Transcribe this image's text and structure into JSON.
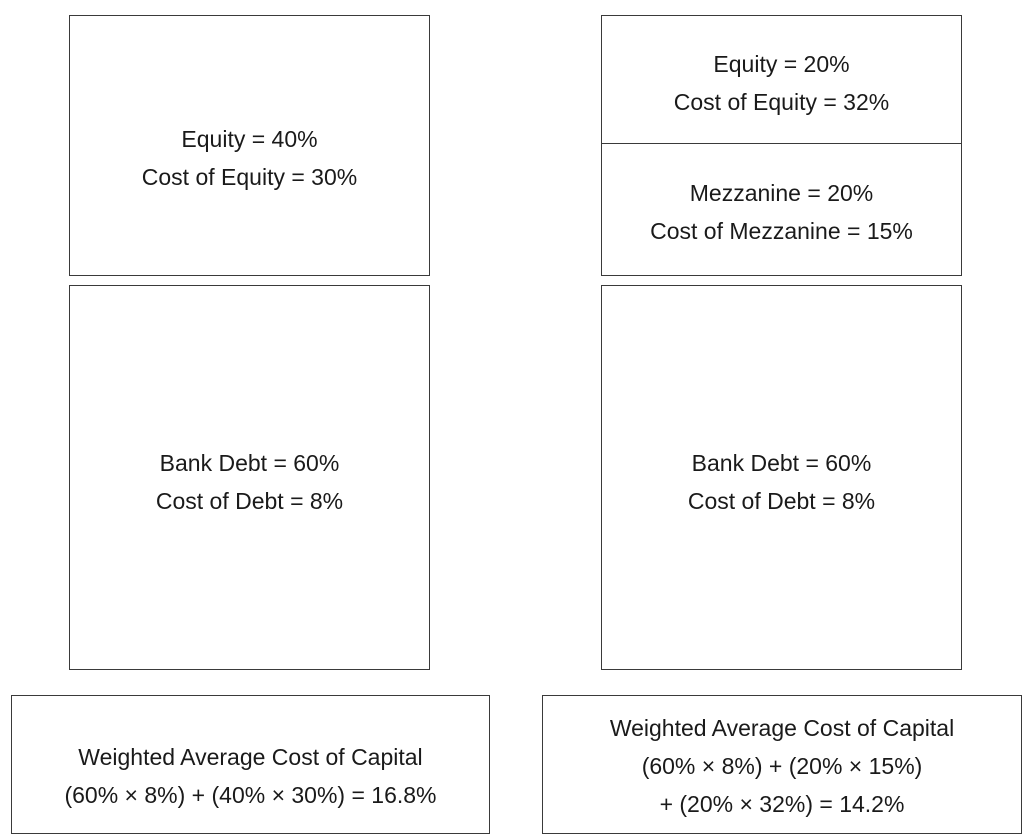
{
  "left": {
    "equity": [
      "Equity = 40%",
      "Cost of Equity = 30%"
    ],
    "debt": [
      "Bank Debt = 60%",
      "Cost of Debt = 8%"
    ],
    "wacc": [
      "Weighted Average Cost of Capital",
      "(60% × 8%) + (40% × 30%) = 16.8%"
    ]
  },
  "right": {
    "equity": [
      "Equity = 20%",
      "Cost of Equity = 32%"
    ],
    "mezzanine": [
      "Mezzanine = 20%",
      "Cost of Mezzanine = 15%"
    ],
    "debt": [
      "Bank Debt = 60%",
      "Cost of Debt = 8%"
    ],
    "wacc": [
      "Weighted Average Cost of Capital",
      "(60% × 8%) + (20% × 15%)",
      "+ (20% × 32%) = 14.2%"
    ]
  }
}
